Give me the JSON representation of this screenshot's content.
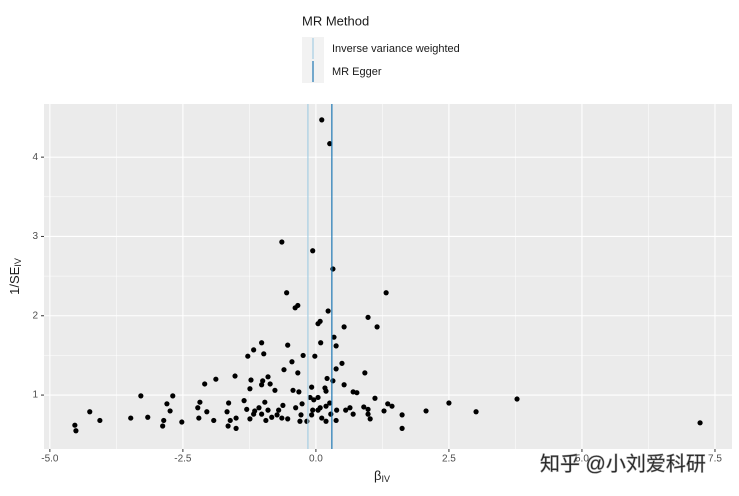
{
  "chart_data": {
    "type": "scatter",
    "legend_title": "MR Method",
    "legend_position": "top",
    "x_label": "β",
    "x_label_sub": "IV",
    "y_label": "1/SE",
    "y_label_sub": "IV",
    "watermark": "知乎 @小刘爱科研",
    "color": "#000000",
    "x": [
      0.11,
      0.26,
      -0.64,
      -0.06,
      0.32,
      -0.55,
      1.32,
      -0.34,
      -0.39,
      0.23,
      0.98,
      0.08,
      0.04,
      0.53,
      1.15,
      0.34,
      -1.02,
      -0.53,
      0.09,
      0.38,
      -1.17,
      -0.98,
      -1.28,
      -0.24,
      -0.02,
      0.49,
      -0.45,
      0.38,
      -0.6,
      -0.34,
      0.92,
      -1.52,
      -0.9,
      0.21,
      -1.88,
      -1.22,
      -1.0,
      0.32,
      -2.09,
      -1.02,
      -0.86,
      0.53,
      -0.08,
      0.17,
      -1.24,
      -0.77,
      -0.43,
      0.19,
      -0.32,
      0.7,
      0.77,
      -3.29,
      -2.69,
      -0.11,
      0.04,
      1.11,
      3.78,
      -0.04,
      -1.35,
      -2.18,
      -0.96,
      -1.64,
      -2.8,
      2.5,
      -0.26,
      0.26,
      1.35,
      -0.62,
      1.43,
      0.08,
      0.19,
      0.64,
      0.9,
      0.98,
      -2.22,
      -1.3,
      -1.07,
      -0.38,
      -0.06,
      0.04,
      0.39,
      0.56,
      -1.15,
      -0.9,
      -0.7,
      -2.05,
      -1.67,
      -2.74,
      -4.25,
      2.07,
      1.28,
      3.01,
      -1.17,
      -1.02,
      -0.73,
      -0.28,
      -0.08,
      0.28,
      0.7,
      0.98,
      1.62,
      -3.16,
      -3.48,
      -2.2,
      -1.5,
      -0.83,
      -0.64,
      -0.53,
      0.11,
      1.02,
      -4.06,
      -2.86,
      -1.92,
      -1.24,
      -0.94,
      -0.3,
      -0.17,
      0.38,
      -2.52,
      -1.61,
      0.19,
      7.22,
      -4.53,
      -2.88,
      -1.65,
      -1.5,
      1.62,
      -4.51
    ],
    "values": [
      4.47,
      4.17,
      2.93,
      2.82,
      2.59,
      2.29,
      2.29,
      2.13,
      2.1,
      2.06,
      1.98,
      1.93,
      1.9,
      1.86,
      1.86,
      1.73,
      1.66,
      1.63,
      1.66,
      1.62,
      1.57,
      1.52,
      1.49,
      1.5,
      1.49,
      1.4,
      1.42,
      1.33,
      1.32,
      1.28,
      1.28,
      1.24,
      1.23,
      1.21,
      1.2,
      1.19,
      1.18,
      1.18,
      1.14,
      1.13,
      1.14,
      1.13,
      1.1,
      1.09,
      1.08,
      1.06,
      1.06,
      1.05,
      1.04,
      1.04,
      1.03,
      0.99,
      0.99,
      0.97,
      0.97,
      0.96,
      0.95,
      0.94,
      0.93,
      0.91,
      0.91,
      0.9,
      0.89,
      0.9,
      0.89,
      0.9,
      0.89,
      0.87,
      0.86,
      0.84,
      0.86,
      0.84,
      0.85,
      0.82,
      0.84,
      0.82,
      0.84,
      0.84,
      0.81,
      0.81,
      0.81,
      0.81,
      0.8,
      0.81,
      0.81,
      0.79,
      0.79,
      0.8,
      0.79,
      0.8,
      0.8,
      0.79,
      0.76,
      0.76,
      0.75,
      0.75,
      0.75,
      0.76,
      0.76,
      0.76,
      0.75,
      0.72,
      0.71,
      0.71,
      0.71,
      0.72,
      0.71,
      0.7,
      0.71,
      0.7,
      0.68,
      0.68,
      0.68,
      0.7,
      0.68,
      0.67,
      0.67,
      0.68,
      0.66,
      0.68,
      0.67,
      0.65,
      0.62,
      0.61,
      0.61,
      0.58,
      0.58,
      0.55
    ],
    "vlines": [
      {
        "name": "Inverse variance weighted",
        "value": -0.15,
        "color": "#a6cee3"
      },
      {
        "name": "MR Egger",
        "value": 0.3,
        "color": "#1f78b4"
      }
    ],
    "xlim": [
      -5.11,
      7.82
    ],
    "ylim": [
      0.32,
      4.67
    ],
    "xticks": [
      {
        "value": -5,
        "label": "-5.0"
      },
      {
        "value": -2.5,
        "label": "-2.5"
      },
      {
        "value": 0,
        "label": "0.0"
      },
      {
        "value": 2.5,
        "label": "2.5"
      },
      {
        "value": 5,
        "label": "5.0"
      },
      {
        "value": 7.5,
        "label": "7.5"
      }
    ],
    "yticks": [
      1,
      2,
      3,
      4
    ],
    "grid": true
  }
}
